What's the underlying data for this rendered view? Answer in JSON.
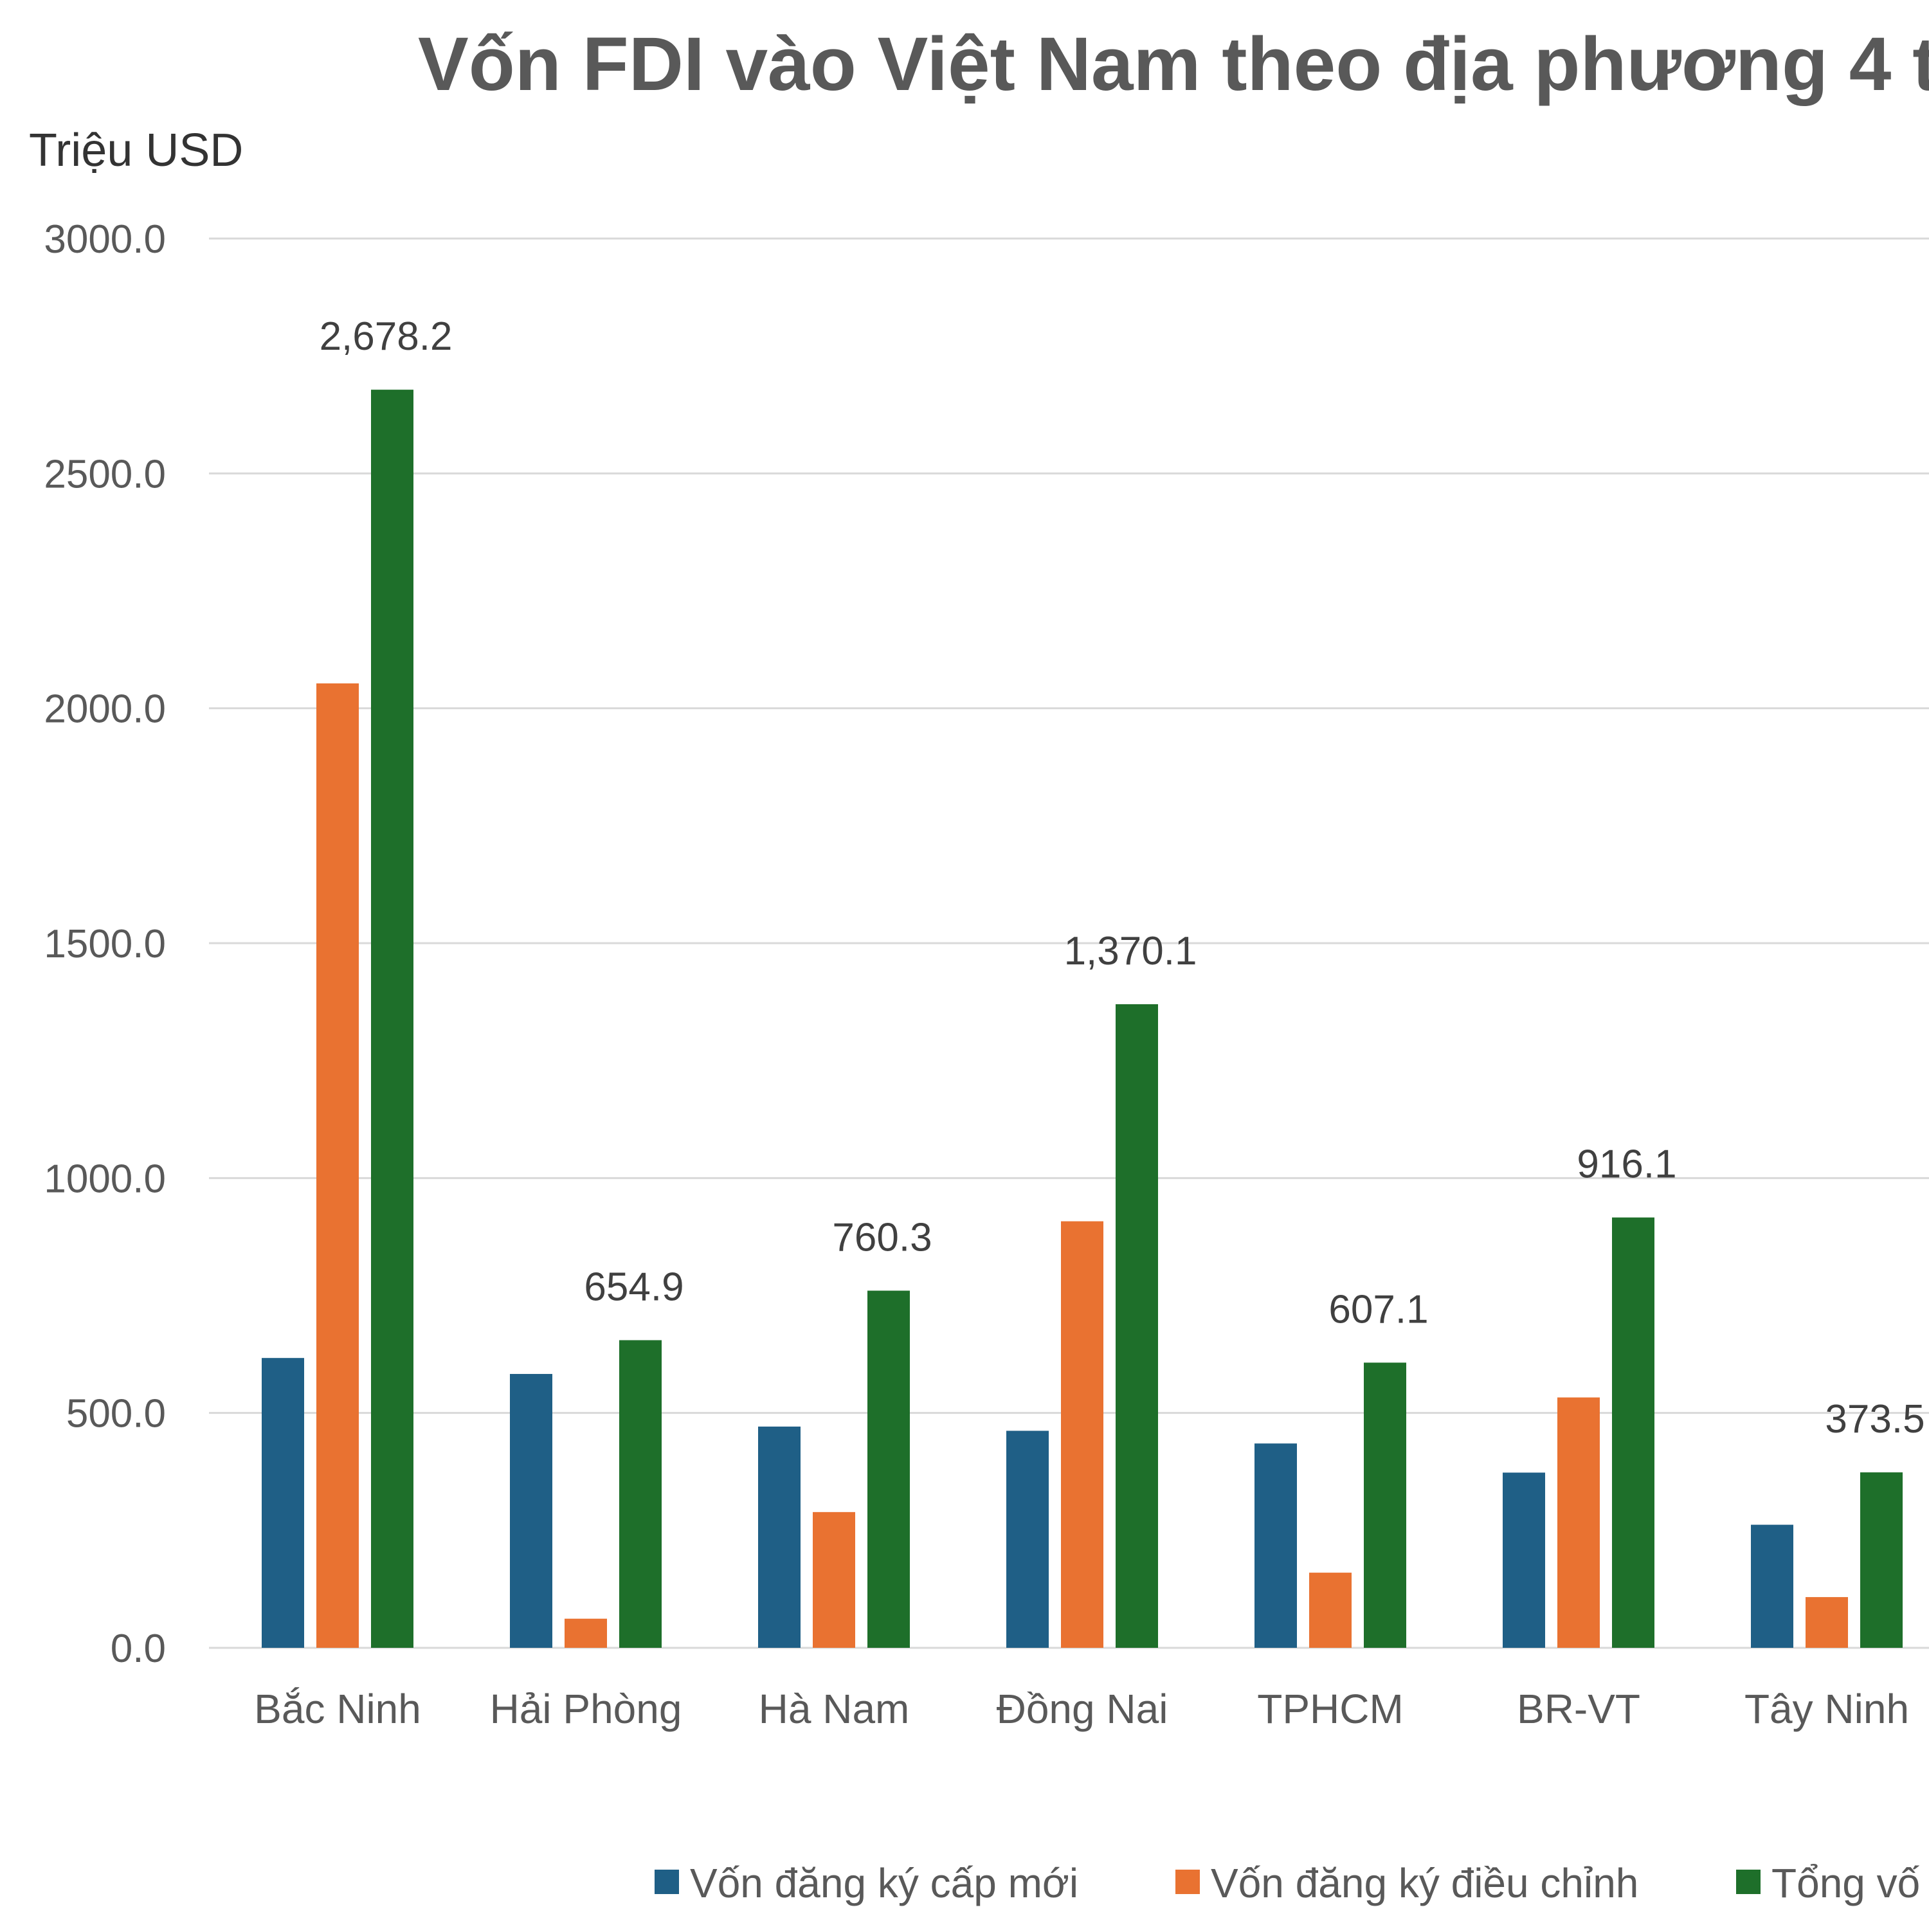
{
  "chart_data": {
    "type": "bar",
    "title": "Vốn FDI vào Việt Nam theo địa phương 4 t",
    "ylabel": "Triệu USD",
    "xlabel": "",
    "ylim": [
      0,
      3000
    ],
    "yticks": [
      0,
      500,
      1000,
      1500,
      2000,
      2500,
      3000
    ],
    "ytick_labels": [
      "0.0",
      "500.0",
      "1000.0",
      "1500.0",
      "2000.0",
      "2500.0",
      "3000.0"
    ],
    "grid": true,
    "legend_position": "bottom",
    "categories": [
      "Bắc Ninh",
      "Hải Phòng",
      "Hà Nam",
      "Đồng Nai",
      "TPHCM",
      "BR-VT",
      "Tây Ninh"
    ],
    "series": [
      {
        "name": "Vốn đăng ký cấp mới",
        "color": "#1f5f86",
        "values": [
          617,
          583,
          471,
          462,
          435,
          373,
          262
        ]
      },
      {
        "name": "Vốn đăng ký điều chỉnh",
        "color": "#e97231",
        "values": [
          2053,
          62,
          289,
          908,
          160,
          533,
          108
        ]
      },
      {
        "name": "Tổng vố",
        "color": "#1e6f2a",
        "values": [
          2678.2,
          654.9,
          760.3,
          1370.1,
          607.1,
          916.1,
          373.5
        ]
      }
    ],
    "data_labels": {
      "series": 2,
      "labels": [
        "2,678.2",
        "654.9",
        "760.3",
        "1,370.1",
        "607.1",
        "916.1",
        "373.5"
      ]
    }
  }
}
